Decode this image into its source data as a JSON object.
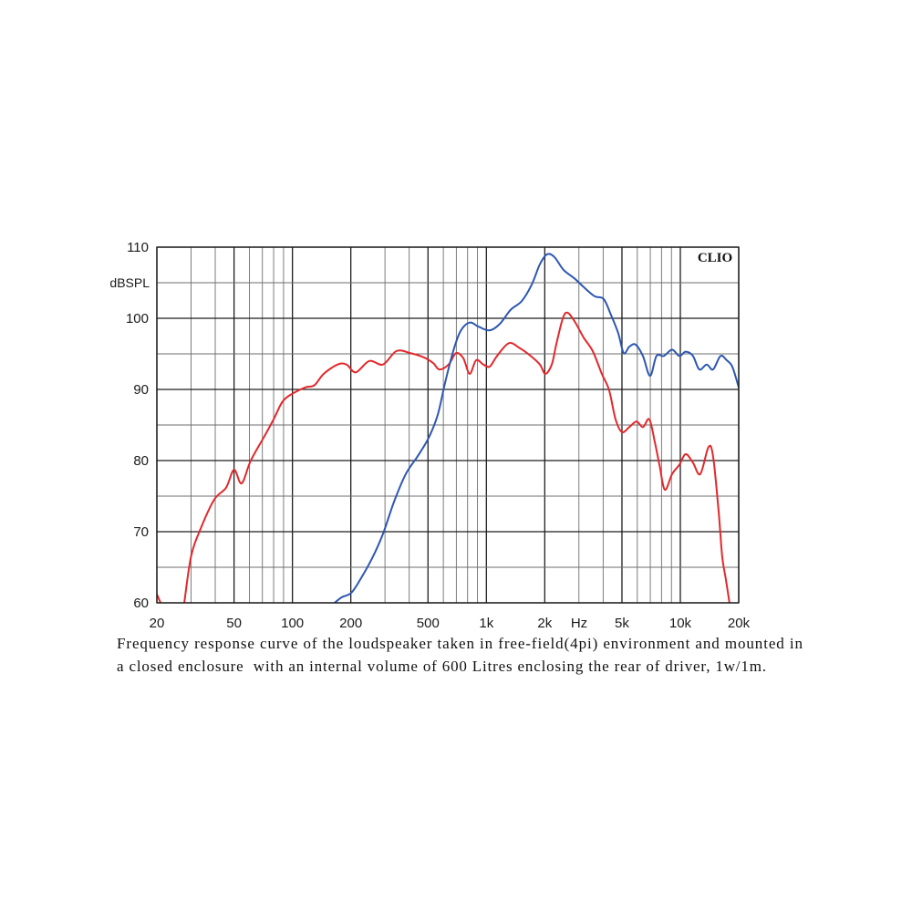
{
  "chart_data": {
    "type": "line",
    "x_scale": "log",
    "xlim": [
      20,
      20000
    ],
    "ylim": [
      60,
      110
    ],
    "ylabel": "dBSPL",
    "xlabel": "Hz",
    "grid": true,
    "annotation": "CLIO",
    "x_ticks": [
      {
        "value": 20,
        "label": "20"
      },
      {
        "value": 50,
        "label": "50"
      },
      {
        "value": 100,
        "label": "100"
      },
      {
        "value": 200,
        "label": "200"
      },
      {
        "value": 500,
        "label": "500"
      },
      {
        "value": 1000,
        "label": "1k"
      },
      {
        "value": 2000,
        "label": "2k"
      },
      {
        "value": 5000,
        "label": "5k"
      },
      {
        "value": 10000,
        "label": "10k"
      },
      {
        "value": 20000,
        "label": "20k"
      }
    ],
    "y_ticks": [
      {
        "value": 60,
        "label": "60"
      },
      {
        "value": 70,
        "label": "70"
      },
      {
        "value": 80,
        "label": "80"
      },
      {
        "value": 90,
        "label": "90"
      },
      {
        "value": 100,
        "label": "100"
      },
      {
        "value": 110,
        "label": "110"
      }
    ],
    "series": [
      {
        "color": "#e3282b",
        "points": [
          [
            20,
            61.2
          ],
          [
            20.9,
            60
          ],
          null,
          [
            27.7,
            60
          ],
          [
            30,
            66.5
          ],
          [
            33.6,
            70.4
          ],
          [
            39.5,
            74.5
          ],
          [
            45.5,
            76.2
          ],
          [
            50,
            78.7
          ],
          [
            54.7,
            76.8
          ],
          [
            61,
            80
          ],
          [
            72,
            83.5
          ],
          [
            80,
            85.8
          ],
          [
            89,
            88.3
          ],
          [
            100,
            89.4
          ],
          [
            117,
            90.3
          ],
          [
            130,
            90.6
          ],
          [
            145,
            92.2
          ],
          [
            171,
            93.5
          ],
          [
            190,
            93.5
          ],
          [
            212,
            92.4
          ],
          [
            249,
            94
          ],
          [
            293,
            93.5
          ],
          [
            344,
            95.4
          ],
          [
            406,
            95.1
          ],
          [
            477,
            94.5
          ],
          [
            532,
            93.7
          ],
          [
            573,
            92.8
          ],
          [
            639,
            93.5
          ],
          [
            697,
            95.1
          ],
          [
            760,
            94.4
          ],
          [
            820,
            92.2
          ],
          [
            885,
            94.1
          ],
          [
            965,
            93.5
          ],
          [
            1040,
            93.2
          ],
          [
            1135,
            94.7
          ],
          [
            1306,
            96.5
          ],
          [
            1487,
            95.8
          ],
          [
            1694,
            94.7
          ],
          [
            1888,
            93.5
          ],
          [
            2014,
            92.2
          ],
          [
            2173,
            93.5
          ],
          [
            2291,
            96.3
          ],
          [
            2472,
            99.9
          ],
          [
            2612,
            100.8
          ],
          [
            2846,
            99.6
          ],
          [
            3171,
            97.3
          ],
          [
            3532,
            95.4
          ],
          [
            3936,
            92.2
          ],
          [
            4293,
            89.9
          ],
          [
            4634,
            85.8
          ],
          [
            5000,
            84
          ],
          [
            5454,
            84.7
          ],
          [
            5944,
            85.5
          ],
          [
            6414,
            84.7
          ],
          [
            6922,
            85.8
          ],
          [
            7386,
            82.6
          ],
          [
            7804,
            79.4
          ],
          [
            8321,
            75.9
          ],
          [
            9066,
            78.1
          ],
          [
            9880,
            79.4
          ],
          [
            10660,
            80.9
          ],
          [
            11620,
            79.7
          ],
          [
            12670,
            78.1
          ],
          [
            13970,
            81.9
          ],
          [
            14750,
            80.6
          ],
          [
            15740,
            73
          ],
          [
            16440,
            66.5
          ],
          [
            17170,
            63.3
          ],
          [
            17920,
            60
          ]
        ]
      },
      {
        "color": "#2c57b2",
        "points": [
          [
            165,
            60
          ],
          [
            180,
            60.8
          ],
          [
            201,
            61.4
          ],
          [
            224,
            63.3
          ],
          [
            258,
            66.3
          ],
          [
            293,
            69.7
          ],
          [
            334,
            74.2
          ],
          [
            384,
            78.1
          ],
          [
            442,
            80.6
          ],
          [
            504,
            83.2
          ],
          [
            561,
            86.4
          ],
          [
            612,
            90.9
          ],
          [
            675,
            95.4
          ],
          [
            736,
            98.2
          ],
          [
            820,
            99.4
          ],
          [
            914,
            98.8
          ],
          [
            1040,
            98.3
          ],
          [
            1172,
            99.2
          ],
          [
            1334,
            101.2
          ],
          [
            1520,
            102.4
          ],
          [
            1711,
            104.7
          ],
          [
            1888,
            107.6
          ],
          [
            2057,
            109
          ],
          [
            2244,
            108.6
          ],
          [
            2500,
            106.8
          ],
          [
            2846,
            105.6
          ],
          [
            3171,
            104.4
          ],
          [
            3614,
            103.1
          ],
          [
            4027,
            102.7
          ],
          [
            4386,
            100.5
          ],
          [
            4786,
            97.9
          ],
          [
            5105,
            95.1
          ],
          [
            5454,
            96
          ],
          [
            5875,
            96.3
          ],
          [
            6414,
            94.7
          ],
          [
            6982,
            91.9
          ],
          [
            7534,
            94.7
          ],
          [
            8222,
            94.7
          ],
          [
            9066,
            95.6
          ],
          [
            9880,
            94.7
          ],
          [
            10660,
            95.3
          ],
          [
            11620,
            94.7
          ],
          [
            12530,
            92.8
          ],
          [
            13680,
            93.5
          ],
          [
            14750,
            92.8
          ],
          [
            16110,
            94.7
          ],
          [
            17340,
            94.1
          ],
          [
            18530,
            93.2
          ],
          [
            20000,
            90.3
          ]
        ]
      }
    ]
  },
  "caption": {
    "line1": "Frequency response curve of the loudspeaker taken in free-field(4pi) environment and mounted in",
    "line2": "a closed enclosure  with an internal volume of 600 Litres enclosing the rear of driver, 1w/1m."
  }
}
